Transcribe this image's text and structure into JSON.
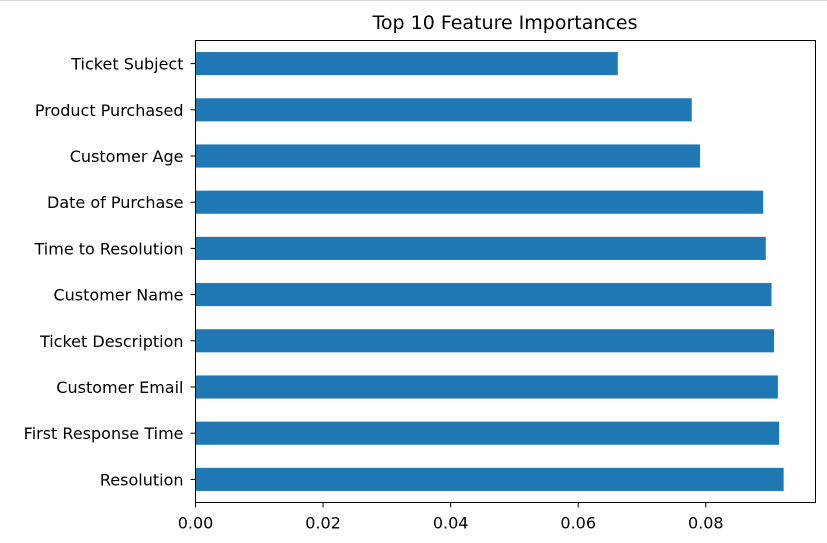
{
  "chart_data": {
    "type": "bar",
    "orientation": "horizontal",
    "title": "Top 10 Feature Importances",
    "xlabel": "",
    "ylabel": "",
    "categories": [
      "Ticket Subject",
      "Product Purchased",
      "Customer Age",
      "Date of Purchase",
      "Time to Resolution",
      "Customer Name",
      "Ticket Description",
      "Customer Email",
      "First Response Time",
      "Resolution"
    ],
    "values": [
      0.0662,
      0.0778,
      0.0791,
      0.089,
      0.0894,
      0.0903,
      0.0907,
      0.0913,
      0.0915,
      0.0922
    ],
    "xlim": [
      0,
      0.0972
    ],
    "xticks": [
      0.0,
      0.02,
      0.04,
      0.06,
      0.08
    ],
    "xtick_labels": [
      "0.00",
      "0.02",
      "0.04",
      "0.06",
      "0.08"
    ],
    "bar_color": "#1f77b4",
    "grid": false,
    "legend": "none"
  }
}
